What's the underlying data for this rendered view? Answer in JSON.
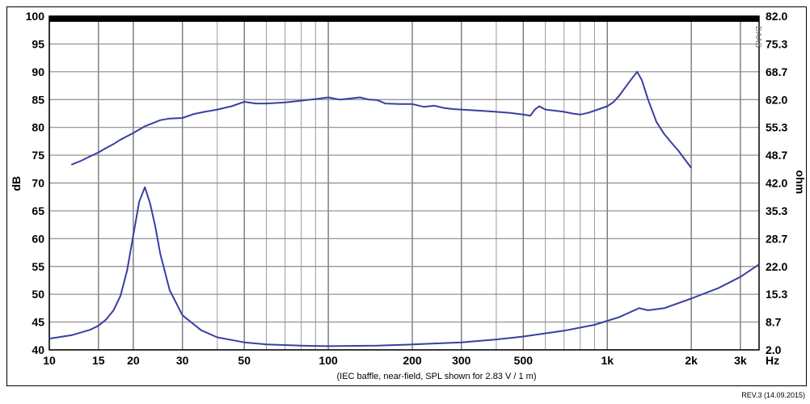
{
  "chart_data": {
    "type": "line",
    "x_scale": "log",
    "xlim": [
      10,
      3500
    ],
    "x_ticks": [
      {
        "v": 10,
        "label": "10"
      },
      {
        "v": 15,
        "label": "15"
      },
      {
        "v": 20,
        "label": "20"
      },
      {
        "v": 30,
        "label": "30"
      },
      {
        "v": 50,
        "label": "50"
      },
      {
        "v": 100,
        "label": "100"
      },
      {
        "v": 200,
        "label": "200"
      },
      {
        "v": 300,
        "label": "300"
      },
      {
        "v": 500,
        "label": "500"
      },
      {
        "v": 1000,
        "label": "1k"
      },
      {
        "v": 2000,
        "label": "2k"
      },
      {
        "v": 3000,
        "label": "3k"
      }
    ],
    "x_unit": "Hz",
    "ylabel": "dB",
    "ylim": [
      40,
      100
    ],
    "y_ticks": [
      40,
      45,
      50,
      55,
      60,
      65,
      70,
      75,
      80,
      85,
      90,
      95,
      100
    ],
    "y2label": "ohm",
    "y2lim": [
      2.0,
      82.0
    ],
    "y2_ticks": [
      "2.0",
      "8.7",
      "15.3",
      "22.0",
      "28.7",
      "35.3",
      "42.0",
      "48.7",
      "55.3",
      "62.0",
      "68.7",
      "75.3",
      "82.0"
    ],
    "grid": true,
    "footnote": "(IEC baffle, near-field, SPL shown for 2.83 V / 1 m)",
    "stamp": "DAAS",
    "color": "#3a3fa0",
    "series": [
      {
        "axis": "left",
        "x": [
          12,
          13,
          14,
          15,
          16,
          17,
          18,
          20,
          22,
          25,
          27,
          30,
          33,
          36,
          40,
          45,
          50,
          55,
          60,
          70,
          80,
          90,
          100,
          110,
          120,
          130,
          140,
          150,
          160,
          180,
          200,
          220,
          240,
          260,
          280,
          300,
          350,
          400,
          450,
          500,
          530,
          550,
          570,
          600,
          650,
          700,
          750,
          800,
          850,
          900,
          1000,
          1050,
          1100,
          1200,
          1280,
          1330,
          1400,
          1500,
          1600,
          1700,
          1800,
          2000
        ],
        "y": [
          73.3,
          74.0,
          74.8,
          75.5,
          76.3,
          77.0,
          77.8,
          79.0,
          80.2,
          81.3,
          81.6,
          81.7,
          82.4,
          82.8,
          83.2,
          83.8,
          84.6,
          84.3,
          84.3,
          84.5,
          84.8,
          85.1,
          85.4,
          85.0,
          85.2,
          85.4,
          85.0,
          84.9,
          84.3,
          84.2,
          84.2,
          83.7,
          83.9,
          83.5,
          83.3,
          83.2,
          83.0,
          82.8,
          82.6,
          82.3,
          82.1,
          83.2,
          83.8,
          83.2,
          83.0,
          82.8,
          82.5,
          82.3,
          82.6,
          83.0,
          83.8,
          84.5,
          85.6,
          88.2,
          90.0,
          88.5,
          85.0,
          81.0,
          78.8,
          77.2,
          75.8,
          72.7
        ]
      },
      {
        "axis": "right",
        "x": [
          10,
          12,
          14,
          15,
          16,
          17,
          18,
          19,
          20,
          21,
          22,
          23,
          24,
          25,
          27,
          30,
          35,
          40,
          50,
          60,
          80,
          100,
          150,
          200,
          300,
          400,
          500,
          700,
          900,
          1100,
          1300,
          1400,
          1600,
          2000,
          2500,
          3000,
          3500
        ],
        "y": [
          4.7,
          5.5,
          6.8,
          7.8,
          9.3,
          11.5,
          15.0,
          21.0,
          29.5,
          37.5,
          41.0,
          37.0,
          31.5,
          25.0,
          16.3,
          10.3,
          6.7,
          5.0,
          3.8,
          3.3,
          3.0,
          2.9,
          3.0,
          3.3,
          3.8,
          4.5,
          5.2,
          6.6,
          8.0,
          9.8,
          12.0,
          11.5,
          12.0,
          14.3,
          16.8,
          19.5,
          22.5
        ]
      }
    ]
  },
  "footer": {
    "revision": "REV.3 (14.09.2015)"
  }
}
